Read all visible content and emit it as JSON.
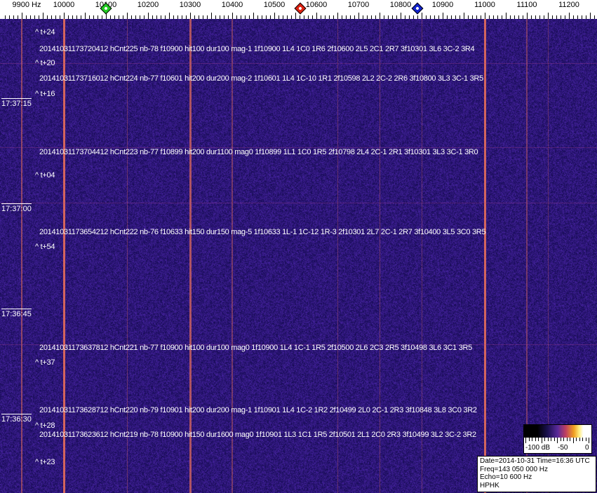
{
  "axis": {
    "unit_label": "9900 Hz",
    "ticks": [
      "10000",
      "10100",
      "10200",
      "10300",
      "10400",
      "10500",
      "10600",
      "10700",
      "10800",
      "10900",
      "11000",
      "11100",
      "11200"
    ]
  },
  "markers": [
    {
      "name": "green-marker",
      "freq_hz": 10100,
      "color": "#22cc22"
    },
    {
      "name": "red-marker",
      "freq_hz": 10562,
      "color": "#dd2211"
    },
    {
      "name": "blue-marker",
      "freq_hz": 10840,
      "color": "#1122cc"
    }
  ],
  "colors": {
    "background": "#24156a",
    "carrier": "#e0705a"
  },
  "time_labels": [
    "17:37:15",
    "17:37:00",
    "17:36:45",
    "17:36:30"
  ],
  "offset_labels": [
    "^ t+24",
    "^ t+20",
    "^ t+16",
    "^ t+04",
    "^ t+54",
    "^ t+37",
    "^ t+28",
    "^ t+23"
  ],
  "detections": [
    "20141031173720412 hCnt225 nb-78 f10900 hit100 dur100 mag-1 1f10900 1L4 1C0 1R6 2f10600 2L5 2C1 2R7 3f10301 3L6 3C-2 3R4",
    "20141031173716012 hCnt224 nb-77 f10601 hit200 dur200 mag-2 1f10601 1L4 1C-10 1R1 2f10598 2L2 2C-2 2R6 3f10800 3L3 3C-1 3R5",
    "20141031173704412 hCnt223 nb-77 f10899 hit200 dur1100 mag0 1f10899 1L1 1C0 1R5 2f10798 2L4 2C-1 2R1 3f10301 3L3 3C-1 3R0",
    "20141031173654212 hCnt222 nb-76 f10633 hit150 dur150 mag-5 1f10633 1L-1 1C-12 1R-3 2f10301 2L7 2C-1 2R7 3f10400 3L5 3C0 3R5",
    "20141031173637812 hCnt221 nb-77 f10900 hit100 dur100 mag0 1f10900 1L4 1C-1 1R5 2f10500 2L6 2C3 2R5 3f10498 3L6 3C1 3R5",
    "20141031173628712 hCnt220 nb-79 f10901 hit200 dur200 mag-1 1f10901 1L4 1C-2 1R2 2f10499 2L0 2C-1 2R3 3f10848 3L8 3C0 3R2",
    "20141031173623612 hCnt219 nb-78 f10900 hit150 dur1600 mag0 1f10901 1L3 1C1 1R5 2f10501 2L1 2C0 2R3 3f10499 3L2 3C-2 3R2"
  ],
  "color_scale": {
    "labels": [
      "-100 dB",
      "-50",
      "0"
    ]
  },
  "info": {
    "date_time": "Date=2014-10-31 Time=16:36 UTC",
    "freq": "Freq=143 050 000 Hz",
    "echo": "Echo=10 600 Hz",
    "station": "HPHK"
  }
}
